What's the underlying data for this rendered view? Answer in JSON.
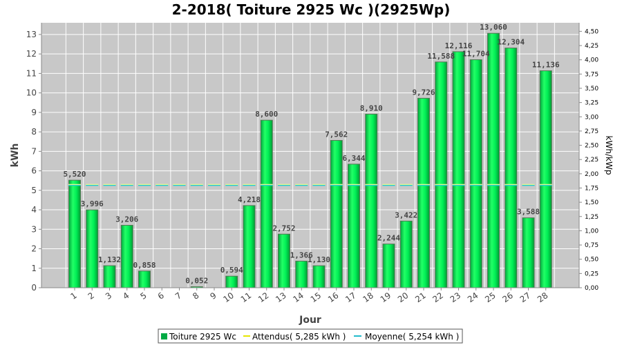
{
  "chart_data": {
    "type": "bar",
    "title": "2-2018( Toiture 2925 Wc )(2925Wp)",
    "xlabel": "Jour",
    "ylabel": "kWh",
    "y2label": "kWh/kWp",
    "categories": [
      "1",
      "2",
      "3",
      "4",
      "5",
      "6",
      "7",
      "8",
      "9",
      "10",
      "11",
      "12",
      "13",
      "14",
      "15",
      "16",
      "17",
      "18",
      "19",
      "20",
      "21",
      "22",
      "23",
      "24",
      "25",
      "26",
      "27",
      "28"
    ],
    "values": [
      5.52,
      3.996,
      1.132,
      3.206,
      0.858,
      0,
      0,
      0.052,
      0,
      0.594,
      4.218,
      8.6,
      2.752,
      1.366,
      1.13,
      7.562,
      6.344,
      8.91,
      2.244,
      3.422,
      9.726,
      11.588,
      12.116,
      11.704,
      13.06,
      12.304,
      3.588,
      11.136
    ],
    "labels": [
      "5,520",
      "3,996",
      "1,132",
      "3,206",
      "0,858",
      "",
      "",
      "0,052",
      "",
      "0,594",
      "4,218",
      "8,600",
      "2,752",
      "1,366",
      "1,130",
      "7,562",
      "6,344",
      "8,910",
      "2,244",
      "3,422",
      "9,726",
      "11,588",
      "12,116",
      "11,704",
      "13,060",
      "12,304",
      "3,588",
      "11,136"
    ],
    "ylim": [
      0,
      13.6
    ],
    "yticks": [
      "0",
      "1",
      "2",
      "3",
      "4",
      "5",
      "6",
      "7",
      "8",
      "9",
      "10",
      "11",
      "12",
      "13"
    ],
    "y2lim": [
      0,
      4.65
    ],
    "y2ticks": [
      "0,00",
      "0,25",
      "0,50",
      "0,75",
      "1,00",
      "1,25",
      "1,50",
      "1,75",
      "2,00",
      "2,25",
      "2,50",
      "2,75",
      "3,00",
      "3,25",
      "3,50",
      "3,75",
      "4,00",
      "4,25",
      "4,50"
    ],
    "expected": 5.285,
    "average": 5.254,
    "grid": true,
    "legend_position": "bottom",
    "colors": {
      "bar": "#00ee55",
      "bar_dark": "#009933",
      "bar_stroke": "#447744",
      "plot_bg": "#c8c8c8",
      "grid": "#ffffff",
      "expected": "#ffff88",
      "average": "#22cccc"
    },
    "legend": [
      {
        "name": "Toiture 2925 Wc",
        "kind": "bar"
      },
      {
        "name": "Attendus( 5,285 kWh )",
        "kind": "expected"
      },
      {
        "name": "Moyenne( 5,254 kWh )",
        "kind": "average"
      }
    ]
  }
}
